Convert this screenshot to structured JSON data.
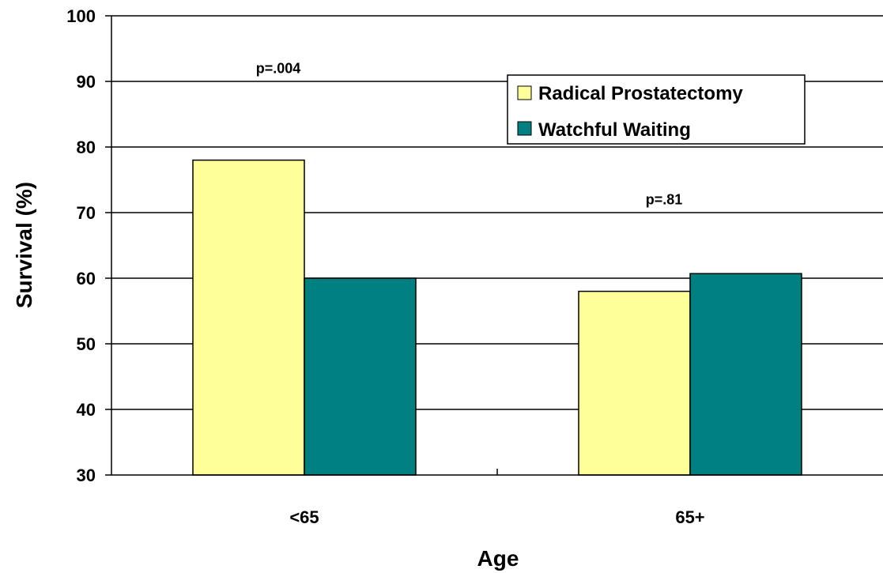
{
  "chart_data": {
    "type": "bar",
    "title": "",
    "xlabel": "Age",
    "ylabel": "Survival (%)",
    "categories": [
      "<65",
      "65+"
    ],
    "ylim": [
      30,
      100
    ],
    "yticks": [
      30,
      40,
      50,
      60,
      70,
      80,
      90,
      100
    ],
    "grid": true,
    "legend_position": "top-right",
    "series": [
      {
        "name": "Radical Prostatectomy",
        "values": [
          78,
          58
        ],
        "color": "#ffff99"
      },
      {
        "name": "Watchful Waiting",
        "values": [
          60,
          60.7
        ],
        "color": "#008080"
      }
    ],
    "annotations": [
      {
        "text": "p=.004",
        "category": "<65",
        "y": 92
      },
      {
        "text": "p=.81",
        "category": "65+",
        "y": 72
      }
    ]
  }
}
